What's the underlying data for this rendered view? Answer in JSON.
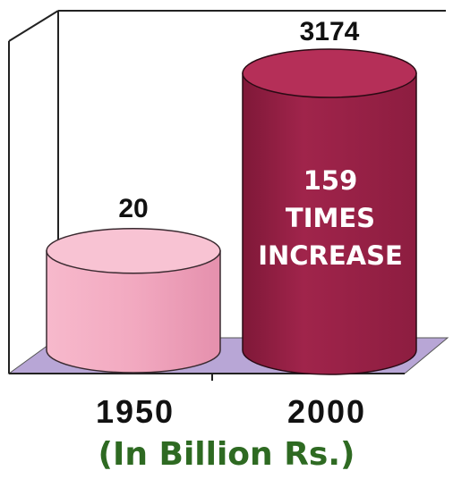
{
  "chart_data": {
    "type": "bar",
    "style": "3d-cylinder",
    "categories": [
      "1950",
      "2000"
    ],
    "values": [
      20,
      3174
    ],
    "value_labels": [
      "20",
      "3174"
    ],
    "annotation": [
      "159",
      "TIMES",
      "INCREASE"
    ],
    "unit_label": "(In Billion Rs.)",
    "grid": false,
    "legend": "none",
    "colors": {
      "bar_1950": "#f2a9c0",
      "bar_1950_top": "#f8c3d3",
      "bar_2000": "#a0244b",
      "bar_2000_top": "#b52f58",
      "floor": "#b8a6d6",
      "frame": "#222222",
      "unit_text": "#2e6a22"
    }
  }
}
